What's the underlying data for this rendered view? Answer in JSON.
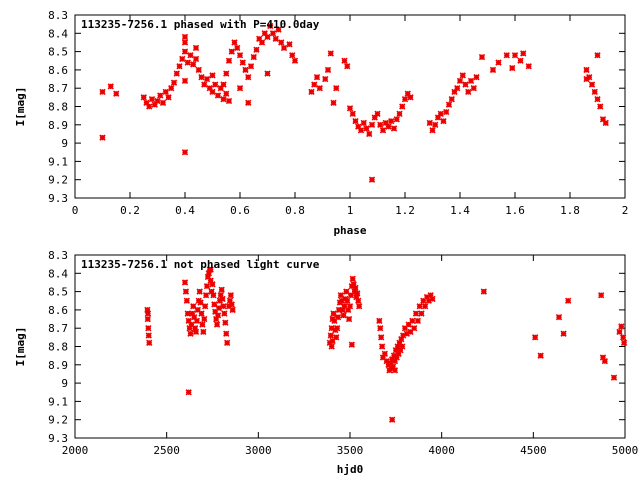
{
  "chart_data": [
    {
      "type": "scatter",
      "title": "113235-7256.1 phased with P=410.0day",
      "xlabel": "phase",
      "ylabel": "I[mag]",
      "xlim": [
        0,
        2
      ],
      "ylim": [
        9.3,
        8.3
      ],
      "y_reversed": true,
      "xticks": [
        "0",
        "0.2",
        "0.4",
        "0.6",
        "0.8",
        "1",
        "1.2",
        "1.4",
        "1.6",
        "1.8",
        "2"
      ],
      "yticks": [
        "8.3",
        "8.4",
        "8.5",
        "8.6",
        "8.7",
        "8.8",
        "8.9",
        "9",
        "9.1",
        "9.2",
        "9.3"
      ],
      "marker_color": "#ee0000",
      "grid": false,
      "points": [
        [
          0.1,
          8.72
        ],
        [
          0.1,
          8.97
        ],
        [
          0.13,
          8.69
        ],
        [
          0.15,
          8.73
        ],
        [
          0.25,
          8.75
        ],
        [
          0.26,
          8.78
        ],
        [
          0.27,
          8.8
        ],
        [
          0.28,
          8.76
        ],
        [
          0.29,
          8.79
        ],
        [
          0.3,
          8.77
        ],
        [
          0.31,
          8.74
        ],
        [
          0.32,
          8.78
        ],
        [
          0.33,
          8.72
        ],
        [
          0.34,
          8.75
        ],
        [
          0.35,
          8.7
        ],
        [
          0.36,
          8.67
        ],
        [
          0.37,
          8.62
        ],
        [
          0.38,
          8.58
        ],
        [
          0.39,
          8.54
        ],
        [
          0.4,
          8.5
        ],
        [
          0.4,
          8.45
        ],
        [
          0.41,
          8.56
        ],
        [
          0.42,
          8.52
        ],
        [
          0.43,
          8.57
        ],
        [
          0.44,
          8.54
        ],
        [
          0.44,
          8.48
        ],
        [
          0.45,
          8.6
        ],
        [
          0.46,
          8.64
        ],
        [
          0.47,
          8.68
        ],
        [
          0.48,
          8.65
        ],
        [
          0.49,
          8.7
        ],
        [
          0.5,
          8.72
        ],
        [
          0.51,
          8.68
        ],
        [
          0.52,
          8.74
        ],
        [
          0.53,
          8.7
        ],
        [
          0.54,
          8.76
        ],
        [
          0.55,
          8.62
        ],
        [
          0.56,
          8.55
        ],
        [
          0.57,
          8.5
        ],
        [
          0.58,
          8.45
        ],
        [
          0.59,
          8.48
        ],
        [
          0.6,
          8.52
        ],
        [
          0.61,
          8.56
        ],
        [
          0.62,
          8.6
        ],
        [
          0.63,
          8.64
        ],
        [
          0.64,
          8.58
        ],
        [
          0.65,
          8.53
        ],
        [
          0.66,
          8.49
        ],
        [
          0.67,
          8.43
        ],
        [
          0.68,
          8.45
        ],
        [
          0.69,
          8.4
        ],
        [
          0.7,
          8.42
        ],
        [
          0.71,
          8.36
        ],
        [
          0.72,
          8.4
        ],
        [
          0.73,
          8.43
        ],
        [
          0.74,
          8.38
        ],
        [
          0.75,
          8.45
        ],
        [
          0.76,
          8.48
        ],
        [
          0.4,
          8.42
        ],
        [
          0.4,
          8.66
        ],
        [
          0.4,
          9.05
        ],
        [
          0.5,
          8.63
        ],
        [
          0.54,
          8.68
        ],
        [
          0.55,
          8.73
        ],
        [
          0.56,
          8.77
        ],
        [
          0.6,
          8.7
        ],
        [
          0.63,
          8.78
        ],
        [
          0.7,
          8.62
        ],
        [
          0.78,
          8.46
        ],
        [
          0.79,
          8.52
        ],
        [
          0.8,
          8.55
        ],
        [
          0.86,
          8.72
        ],
        [
          0.87,
          8.68
        ],
        [
          0.88,
          8.64
        ],
        [
          0.89,
          8.7
        ],
        [
          0.91,
          8.65
        ],
        [
          0.92,
          8.6
        ],
        [
          0.93,
          8.51
        ],
        [
          0.94,
          8.78
        ],
        [
          0.95,
          8.7
        ],
        [
          0.98,
          8.55
        ],
        [
          0.99,
          8.58
        ],
        [
          1.0,
          8.81
        ],
        [
          1.01,
          8.84
        ],
        [
          1.02,
          8.88
        ],
        [
          1.03,
          8.91
        ],
        [
          1.04,
          8.93
        ],
        [
          1.05,
          8.89
        ],
        [
          1.06,
          8.92
        ],
        [
          1.07,
          8.95
        ],
        [
          1.08,
          8.9
        ],
        [
          1.09,
          8.86
        ],
        [
          1.1,
          8.84
        ],
        [
          1.11,
          8.9
        ],
        [
          1.12,
          8.93
        ],
        [
          1.13,
          8.89
        ],
        [
          1.14,
          8.91
        ],
        [
          1.15,
          8.88
        ],
        [
          1.16,
          8.92
        ],
        [
          1.17,
          8.87
        ],
        [
          1.18,
          8.84
        ],
        [
          1.19,
          8.8
        ],
        [
          1.2,
          8.76
        ],
        [
          1.21,
          8.73
        ],
        [
          1.22,
          8.75
        ],
        [
          1.08,
          9.2
        ],
        [
          1.29,
          8.89
        ],
        [
          1.3,
          8.93
        ],
        [
          1.31,
          8.9
        ],
        [
          1.32,
          8.86
        ],
        [
          1.33,
          8.84
        ],
        [
          1.34,
          8.88
        ],
        [
          1.35,
          8.83
        ],
        [
          1.36,
          8.79
        ],
        [
          1.37,
          8.76
        ],
        [
          1.38,
          8.72
        ],
        [
          1.39,
          8.7
        ],
        [
          1.4,
          8.66
        ],
        [
          1.41,
          8.63
        ],
        [
          1.42,
          8.68
        ],
        [
          1.43,
          8.72
        ],
        [
          1.44,
          8.66
        ],
        [
          1.45,
          8.7
        ],
        [
          1.46,
          8.64
        ],
        [
          1.48,
          8.53
        ],
        [
          1.52,
          8.6
        ],
        [
          1.54,
          8.56
        ],
        [
          1.57,
          8.52
        ],
        [
          1.59,
          8.59
        ],
        [
          1.6,
          8.52
        ],
        [
          1.62,
          8.55
        ],
        [
          1.63,
          8.51
        ],
        [
          1.65,
          8.58
        ],
        [
          1.86,
          8.6
        ],
        [
          1.87,
          8.64
        ],
        [
          1.88,
          8.68
        ],
        [
          1.89,
          8.72
        ],
        [
          1.9,
          8.76
        ],
        [
          1.9,
          8.52
        ],
        [
          1.91,
          8.8
        ],
        [
          1.92,
          8.87
        ],
        [
          1.93,
          8.89
        ],
        [
          1.86,
          8.65
        ]
      ]
    },
    {
      "type": "scatter",
      "title": "113235-7256.1 not phased light curve",
      "xlabel": "hjd0",
      "ylabel": "I[mag]",
      "xlim": [
        2000,
        5000
      ],
      "ylim": [
        9.3,
        8.3
      ],
      "y_reversed": true,
      "xticks": [
        "2000",
        "2500",
        "3000",
        "3500",
        "4000",
        "4500",
        "5000"
      ],
      "yticks": [
        "8.3",
        "8.4",
        "8.5",
        "8.6",
        "8.7",
        "8.8",
        "8.9",
        "9",
        "9.1",
        "9.2",
        "9.3"
      ],
      "marker_color": "#ee0000",
      "grid": false,
      "points": [
        [
          2395,
          8.6
        ],
        [
          2397,
          8.65
        ],
        [
          2400,
          8.7
        ],
        [
          2402,
          8.74
        ],
        [
          2405,
          8.78
        ],
        [
          2398,
          8.62
        ],
        [
          2600,
          8.45
        ],
        [
          2605,
          8.5
        ],
        [
          2610,
          8.55
        ],
        [
          2615,
          8.62
        ],
        [
          2620,
          8.66
        ],
        [
          2625,
          8.7
        ],
        [
          2630,
          8.73
        ],
        [
          2635,
          8.68
        ],
        [
          2640,
          8.62
        ],
        [
          2645,
          8.58
        ],
        [
          2650,
          8.64
        ],
        [
          2655,
          8.7
        ],
        [
          2660,
          8.72
        ],
        [
          2665,
          8.66
        ],
        [
          2670,
          8.6
        ],
        [
          2675,
          8.55
        ],
        [
          2680,
          8.5
        ],
        [
          2685,
          8.56
        ],
        [
          2690,
          8.62
        ],
        [
          2695,
          8.68
        ],
        [
          2700,
          8.72
        ],
        [
          2705,
          8.65
        ],
        [
          2710,
          8.58
        ],
        [
          2715,
          8.52
        ],
        [
          2720,
          8.47
        ],
        [
          2725,
          8.42
        ],
        [
          2730,
          8.4
        ],
        [
          2735,
          8.38
        ],
        [
          2740,
          8.44
        ],
        [
          2745,
          8.5
        ],
        [
          2750,
          8.46
        ],
        [
          2755,
          8.52
        ],
        [
          2760,
          8.57
        ],
        [
          2765,
          8.61
        ],
        [
          2770,
          8.65
        ],
        [
          2775,
          8.68
        ],
        [
          2780,
          8.63
        ],
        [
          2785,
          8.59
        ],
        [
          2790,
          8.55
        ],
        [
          2795,
          8.52
        ],
        [
          2800,
          8.49
        ],
        [
          2805,
          8.54
        ],
        [
          2810,
          8.58
        ],
        [
          2815,
          8.62
        ],
        [
          2820,
          8.67
        ],
        [
          2825,
          8.73
        ],
        [
          2830,
          8.78
        ],
        [
          2840,
          8.58
        ],
        [
          2845,
          8.55
        ],
        [
          2850,
          8.52
        ],
        [
          2855,
          8.57
        ],
        [
          2860,
          8.6
        ],
        [
          2620,
          9.05
        ],
        [
          2740,
          8.38
        ],
        [
          3390,
          8.78
        ],
        [
          3395,
          8.74
        ],
        [
          3400,
          8.7
        ],
        [
          3405,
          8.65
        ],
        [
          3410,
          8.62
        ],
        [
          3415,
          8.66
        ],
        [
          3420,
          8.71
        ],
        [
          3425,
          8.75
        ],
        [
          3430,
          8.7
        ],
        [
          3435,
          8.64
        ],
        [
          3440,
          8.6
        ],
        [
          3445,
          8.56
        ],
        [
          3450,
          8.52
        ],
        [
          3455,
          8.55
        ],
        [
          3460,
          8.6
        ],
        [
          3465,
          8.63
        ],
        [
          3470,
          8.58
        ],
        [
          3475,
          8.54
        ],
        [
          3480,
          8.5
        ],
        [
          3485,
          8.55
        ],
        [
          3490,
          8.6
        ],
        [
          3495,
          8.65
        ],
        [
          3500,
          8.58
        ],
        [
          3505,
          8.52
        ],
        [
          3510,
          8.47
        ],
        [
          3515,
          8.43
        ],
        [
          3520,
          8.46
        ],
        [
          3525,
          8.5
        ],
        [
          3530,
          8.48
        ],
        [
          3535,
          8.53
        ],
        [
          3540,
          8.51
        ],
        [
          3545,
          8.55
        ],
        [
          3550,
          8.58
        ],
        [
          3510,
          8.79
        ],
        [
          3400,
          8.8
        ],
        [
          3405,
          8.77
        ],
        [
          3660,
          8.66
        ],
        [
          3665,
          8.7
        ],
        [
          3670,
          8.75
        ],
        [
          3675,
          8.8
        ],
        [
          3680,
          8.86
        ],
        [
          3690,
          8.84
        ],
        [
          3700,
          8.88
        ],
        [
          3710,
          8.9
        ],
        [
          3715,
          8.93
        ],
        [
          3720,
          8.89
        ],
        [
          3725,
          8.92
        ],
        [
          3730,
          8.87
        ],
        [
          3735,
          8.91
        ],
        [
          3740,
          8.85
        ],
        [
          3745,
          8.88
        ],
        [
          3750,
          8.82
        ],
        [
          3755,
          8.86
        ],
        [
          3760,
          8.8
        ],
        [
          3765,
          8.84
        ],
        [
          3770,
          8.78
        ],
        [
          3775,
          8.82
        ],
        [
          3780,
          8.76
        ],
        [
          3785,
          8.8
        ],
        [
          3790,
          8.74
        ],
        [
          3800,
          8.7
        ],
        [
          3810,
          8.73
        ],
        [
          3820,
          8.68
        ],
        [
          3830,
          8.72
        ],
        [
          3840,
          8.66
        ],
        [
          3850,
          8.7
        ],
        [
          3860,
          8.62
        ],
        [
          3870,
          8.66
        ],
        [
          3880,
          8.58
        ],
        [
          3890,
          8.62
        ],
        [
          3900,
          8.55
        ],
        [
          3910,
          8.58
        ],
        [
          3920,
          8.53
        ],
        [
          3930,
          8.55
        ],
        [
          3940,
          8.52
        ],
        [
          3950,
          8.54
        ],
        [
          3730,
          9.2
        ],
        [
          3745,
          8.93
        ],
        [
          4230,
          8.5
        ],
        [
          4510,
          8.75
        ],
        [
          4540,
          8.85
        ],
        [
          4640,
          8.64
        ],
        [
          4665,
          8.73
        ],
        [
          4690,
          8.55
        ],
        [
          4870,
          8.52
        ],
        [
          4880,
          8.86
        ],
        [
          4890,
          8.88
        ],
        [
          4940,
          8.97
        ],
        [
          4970,
          8.72
        ],
        [
          4980,
          8.69
        ],
        [
          4990,
          8.75
        ],
        [
          4995,
          8.78
        ]
      ]
    }
  ]
}
